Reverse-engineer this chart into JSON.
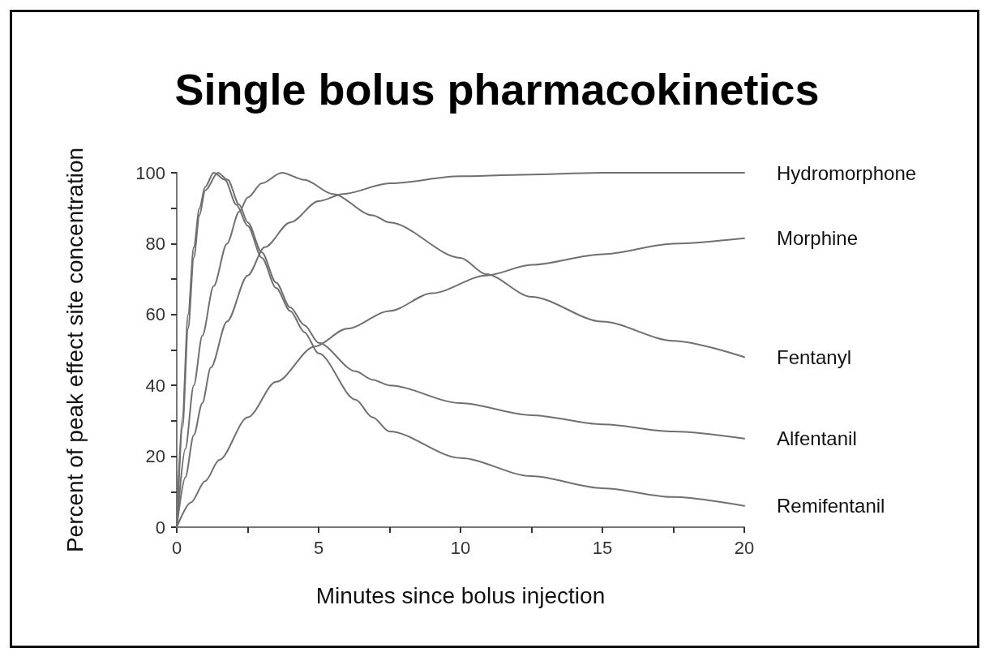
{
  "chart_data": {
    "type": "line",
    "title": "Single bolus pharmacokinetics",
    "xlabel": "Minutes since bolus injection",
    "ylabel": "Percent of peak effect site concentration",
    "xlim": [
      0,
      20
    ],
    "xticks": [
      0,
      {
        "value": 2.5,
        "label": null
      },
      5,
      {
        "value": 7.5,
        "label": null
      },
      10,
      {
        "value": 12.5,
        "label": null
      },
      15,
      {
        "value": 17.5,
        "label": null
      },
      20
    ],
    "ylim": [
      0,
      100
    ],
    "yticks": [
      0,
      {
        "value": 10,
        "label": null
      },
      20,
      {
        "value": 30,
        "label": null
      },
      40,
      {
        "value": 50,
        "label": null
      },
      60,
      {
        "value": 70,
        "label": null
      },
      80,
      {
        "value": 90,
        "label": null
      },
      100
    ],
    "grid": false,
    "legend": false,
    "marker": "none",
    "line_style": "solid",
    "series": [
      {
        "name": "Hydromorphone",
        "color": "#707070",
        "x": [
          0,
          0.3,
          0.6,
          0.9,
          1.2,
          1.77,
          2.5,
          3.1,
          4,
          5,
          5.86,
          7.5,
          10,
          12.5,
          15,
          17.5,
          20
        ],
        "values": [
          0,
          14,
          26,
          35,
          45,
          58,
          71,
          79,
          86,
          92,
          94,
          97,
          99,
          99.5,
          100,
          100,
          100
        ]
      },
      {
        "name": "Morphine",
        "color": "#707070",
        "x": [
          0,
          0.5,
          1,
          1.5,
          2.5,
          3.5,
          4.86,
          6,
          7.5,
          9,
          10.9,
          12.5,
          15,
          17.5,
          20
        ],
        "values": [
          0,
          7,
          13,
          19,
          31,
          41,
          51,
          56,
          61,
          66,
          71,
          74,
          77,
          80,
          81.5
        ]
      },
      {
        "name": "Fentanyl",
        "color": "#707070",
        "x": [
          0,
          0.3,
          0.6,
          0.9,
          1.3,
          1.77,
          2.2,
          2.5,
          3,
          3.7,
          4.5,
          5.5,
          6.9,
          7.5,
          10,
          10.9,
          12.5,
          15,
          17.5,
          20
        ],
        "values": [
          0,
          22,
          40,
          54,
          68,
          80,
          89,
          93,
          97,
          100,
          98,
          94,
          88,
          86,
          76,
          71.4,
          65,
          58,
          52.6,
          48
        ]
      },
      {
        "name": "Alfentanil",
        "color": "#707070",
        "x": [
          0,
          0.2,
          0.4,
          0.6,
          0.8,
          1,
          1.45,
          1.8,
          2.2,
          2.5,
          3,
          3.5,
          4,
          4.5,
          5,
          6.3,
          6.9,
          7.5,
          10,
          12.5,
          15,
          17.5,
          20
        ],
        "values": [
          0,
          28,
          56,
          76,
          88,
          95,
          100,
          98,
          91,
          86,
          77.5,
          69,
          62,
          57,
          52,
          44,
          41.6,
          40,
          35,
          31.6,
          29,
          27,
          25
        ]
      },
      {
        "name": "Remifentanil",
        "color": "#707070",
        "x": [
          0,
          0.2,
          0.4,
          0.6,
          0.8,
          1,
          1.3,
          1.7,
          2.1,
          2.5,
          3,
          3.5,
          4,
          4.5,
          5,
          6.3,
          6.9,
          7.5,
          10,
          12.5,
          15,
          17.5,
          20
        ],
        "values": [
          0,
          31,
          60,
          79,
          90,
          96,
          100,
          98,
          91,
          85,
          76,
          67.5,
          61,
          55,
          49,
          36,
          31,
          27,
          19.5,
          14.4,
          11,
          8.5,
          6
        ]
      }
    ]
  }
}
